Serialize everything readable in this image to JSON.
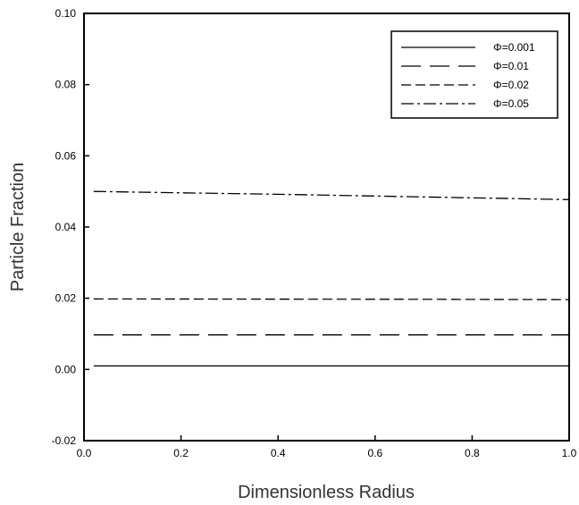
{
  "chart_data": {
    "type": "line",
    "title": "",
    "xlabel": "Dimensionless Radius",
    "ylabel": "Particle Fraction",
    "xlim": [
      0.0,
      1.0
    ],
    "ylim": [
      -0.02,
      0.1
    ],
    "x_ticks": [
      "0.0",
      "0.2",
      "0.4",
      "0.6",
      "0.8",
      "1.0"
    ],
    "y_ticks": [
      "-0.02",
      "0.00",
      "0.02",
      "0.04",
      "0.06",
      "0.08",
      "0.10"
    ],
    "grid": false,
    "legend_position": "top-right",
    "series": [
      {
        "name": "Φ=0.001",
        "dash": "solid",
        "x": [
          0.02,
          1.0
        ],
        "y": [
          0.001,
          0.001
        ]
      },
      {
        "name": "Φ=0.01",
        "dash": "long-dash",
        "x": [
          0.02,
          1.0
        ],
        "y": [
          0.0097,
          0.0097
        ]
      },
      {
        "name": "Φ=0.02",
        "dash": "short-dash",
        "x": [
          0.02,
          0.7,
          1.0
        ],
        "y": [
          0.0198,
          0.0197,
          0.0196
        ]
      },
      {
        "name": "Φ=0.05",
        "dash": "dash-dot",
        "x": [
          0.02,
          0.2,
          0.4,
          0.6,
          0.8,
          1.0
        ],
        "y": [
          0.05,
          0.0496,
          0.0492,
          0.0487,
          0.0482,
          0.0477
        ]
      }
    ]
  }
}
